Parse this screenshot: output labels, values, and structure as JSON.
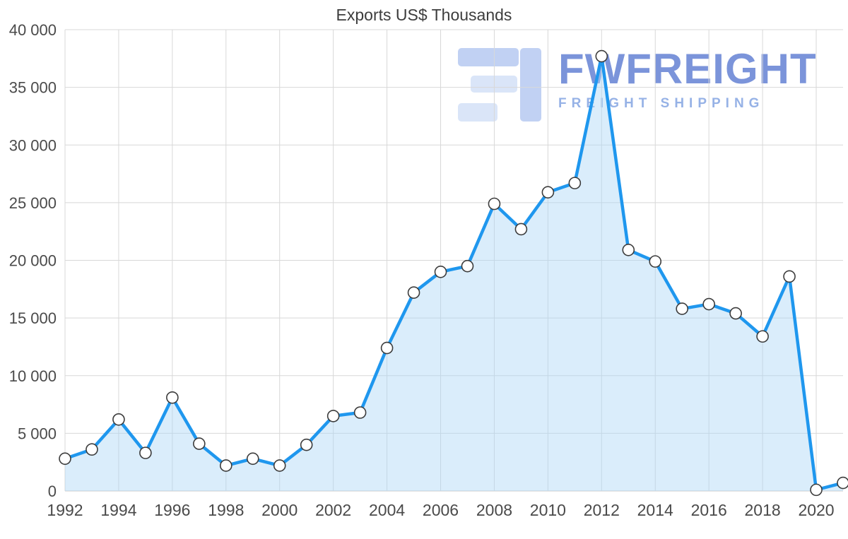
{
  "chart_data": {
    "type": "line",
    "title": "Exports US$ Thousands",
    "x": [
      1992,
      1993,
      1994,
      1995,
      1996,
      1997,
      1998,
      1999,
      2000,
      2001,
      2002,
      2003,
      2004,
      2005,
      2006,
      2007,
      2008,
      2009,
      2010,
      2011,
      2012,
      2013,
      2014,
      2015,
      2016,
      2017,
      2018,
      2019,
      2020,
      2021
    ],
    "values": [
      2800,
      3600,
      6200,
      3300,
      8100,
      4100,
      2200,
      2800,
      2200,
      4000,
      6500,
      6800,
      12400,
      17200,
      19000,
      19500,
      24900,
      22700,
      25900,
      26700,
      37700,
      20900,
      19900,
      15800,
      16200,
      15400,
      13400,
      18600,
      100,
      700
    ],
    "ylim": [
      0,
      40000
    ],
    "y_ticks": [
      0,
      5000,
      10000,
      15000,
      20000,
      25000,
      30000,
      35000,
      40000
    ],
    "y_tick_labels": [
      "0",
      "5 000",
      "10 000",
      "15 000",
      "20 000",
      "25 000",
      "30 000",
      "35 000",
      "40 000"
    ],
    "x_tick_years": [
      1992,
      1994,
      1996,
      1998,
      2000,
      2002,
      2004,
      2006,
      2008,
      2010,
      2012,
      2014,
      2016,
      2018,
      2020
    ],
    "x_tick_labels": [
      "1992",
      "1994",
      "1996",
      "1998",
      "2000",
      "2002",
      "2004",
      "2006",
      "2008",
      "2010",
      "2012",
      "2014",
      "2016",
      "2018",
      "2020"
    ],
    "grid": true,
    "legend": "none",
    "line_color": "#1f97ee",
    "area_color": "rgba(173, 214, 246, 0.45)",
    "grid_color": "#d8d8d8",
    "axis_color": "#c9c9c9",
    "marker_fill": "#ffffff",
    "marker_stroke": "#3c3c3c"
  },
  "watermark": {
    "brand": "FWFREIGHT",
    "tagline": "FREIGHT SHIPPING",
    "logo_color_dark": "#8fadea",
    "logo_color_light": "#bcd0f3"
  }
}
